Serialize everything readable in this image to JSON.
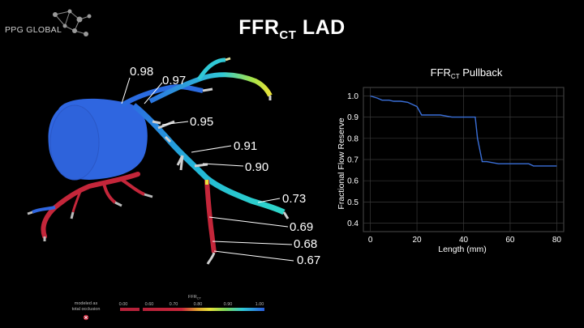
{
  "logo": {
    "text": "PPG GLOBAL"
  },
  "title": {
    "main": "FFR",
    "sub": "CT",
    "suffix": " LAD"
  },
  "vessel_labels": [
    {
      "id": "lbl-098",
      "text": "0.98"
    },
    {
      "id": "lbl-097",
      "text": "0.97"
    },
    {
      "id": "lbl-095",
      "text": "0.95"
    },
    {
      "id": "lbl-091",
      "text": "0.91"
    },
    {
      "id": "lbl-090",
      "text": "0.90"
    },
    {
      "id": "lbl-073",
      "text": "0.73"
    },
    {
      "id": "lbl-069",
      "text": "0.69"
    },
    {
      "id": "lbl-068",
      "text": "0.68"
    },
    {
      "id": "lbl-067",
      "text": "0.67"
    }
  ],
  "chart_data": {
    "type": "line",
    "title": "FFR",
    "title_sub": "CT",
    "title_suffix": " Pullback",
    "xlabel": "Length (mm)",
    "ylabel": "Fractional Flow Reserve",
    "xlim": [
      -3,
      83
    ],
    "ylim": [
      0.36,
      1.04
    ],
    "xticks": [
      0,
      20,
      40,
      60,
      80
    ],
    "yticks": [
      0.4,
      0.5,
      0.6,
      0.7,
      0.8,
      0.9,
      1.0
    ],
    "grid": true,
    "color": "#3a6fd8",
    "x": [
      0,
      3,
      5,
      8,
      10,
      13,
      16,
      18,
      20,
      22,
      24,
      30,
      35,
      40,
      45,
      46,
      48,
      50,
      55,
      60,
      65,
      68,
      70,
      75,
      80
    ],
    "y": [
      1.0,
      0.99,
      0.98,
      0.98,
      0.975,
      0.975,
      0.97,
      0.96,
      0.95,
      0.91,
      0.91,
      0.91,
      0.9,
      0.9,
      0.9,
      0.8,
      0.69,
      0.69,
      0.68,
      0.68,
      0.68,
      0.68,
      0.67,
      0.67,
      0.67
    ]
  },
  "scale": {
    "title": "FFR",
    "title_sub": "CT",
    "occlusion_line1": "modeled as",
    "occlusion_line2": "total occlusion",
    "ticks": [
      "0.00",
      "0.60",
      "0.70",
      "0.80",
      "0.90",
      "1.00"
    ]
  }
}
